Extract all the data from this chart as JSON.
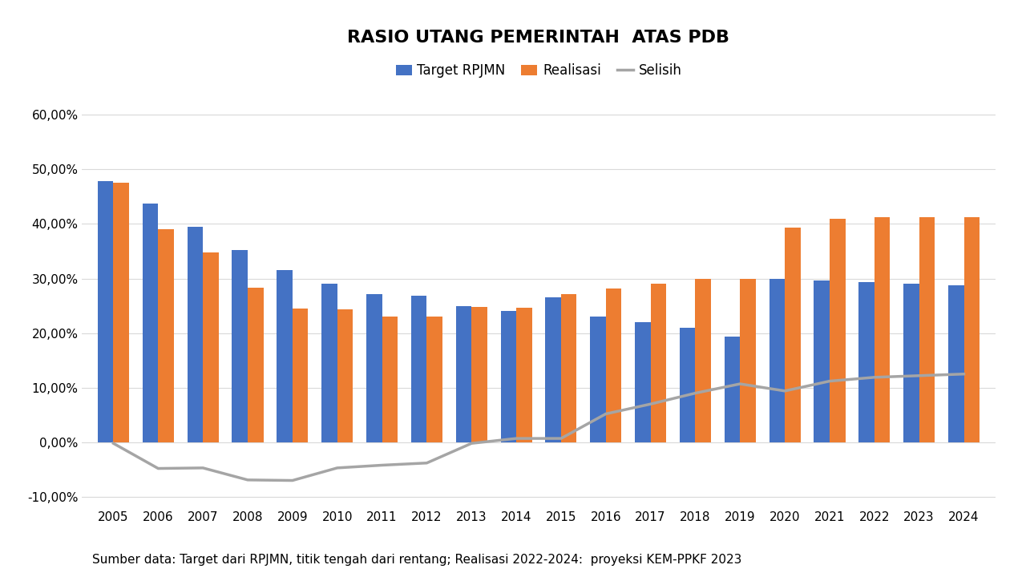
{
  "title": "RASIO UTANG PEMERINTAH  ATAS PDB",
  "years": [
    2005,
    2006,
    2007,
    2008,
    2009,
    2010,
    2011,
    2012,
    2013,
    2014,
    2015,
    2016,
    2017,
    2018,
    2019,
    2020,
    2021,
    2022,
    2023,
    2024
  ],
  "target_rpjmn": [
    0.478,
    0.438,
    0.395,
    0.352,
    0.315,
    0.29,
    0.272,
    0.268,
    0.25,
    0.24,
    0.265,
    0.23,
    0.22,
    0.21,
    0.193,
    0.3,
    0.297,
    0.294,
    0.291,
    0.288
  ],
  "realisasi": [
    0.476,
    0.39,
    0.348,
    0.283,
    0.245,
    0.243,
    0.23,
    0.23,
    0.248,
    0.247,
    0.272,
    0.282,
    0.29,
    0.3,
    0.3,
    0.394,
    0.409,
    0.413,
    0.413,
    0.413
  ],
  "selisih": [
    -0.002,
    -0.048,
    -0.047,
    -0.069,
    -0.07,
    -0.047,
    -0.042,
    -0.038,
    -0.002,
    0.007,
    0.007,
    0.052,
    0.07,
    0.09,
    0.107,
    0.094,
    0.112,
    0.119,
    0.122,
    0.125
  ],
  "bar_width": 0.35,
  "color_target": "#4472c4",
  "color_realisasi": "#ed7d31",
  "color_selisih": "#a5a5a5",
  "ylim_min": -0.12,
  "ylim_max": 0.62,
  "yticks": [
    -0.1,
    0.0,
    0.1,
    0.2,
    0.3,
    0.4,
    0.5,
    0.6
  ],
  "legend_labels": [
    "Target RPJMN",
    "Realisasi",
    "Selisih"
  ],
  "source_text": "Sumber data: Target dari RPJMN, titik tengah dari rentang; Realisasi 2022-2024:  proyeksi KEM-PPKF 2023",
  "background_color": "#ffffff",
  "grid_color": "#d9d9d9",
  "title_fontsize": 16,
  "tick_fontsize": 11,
  "legend_fontsize": 12,
  "source_fontsize": 11
}
